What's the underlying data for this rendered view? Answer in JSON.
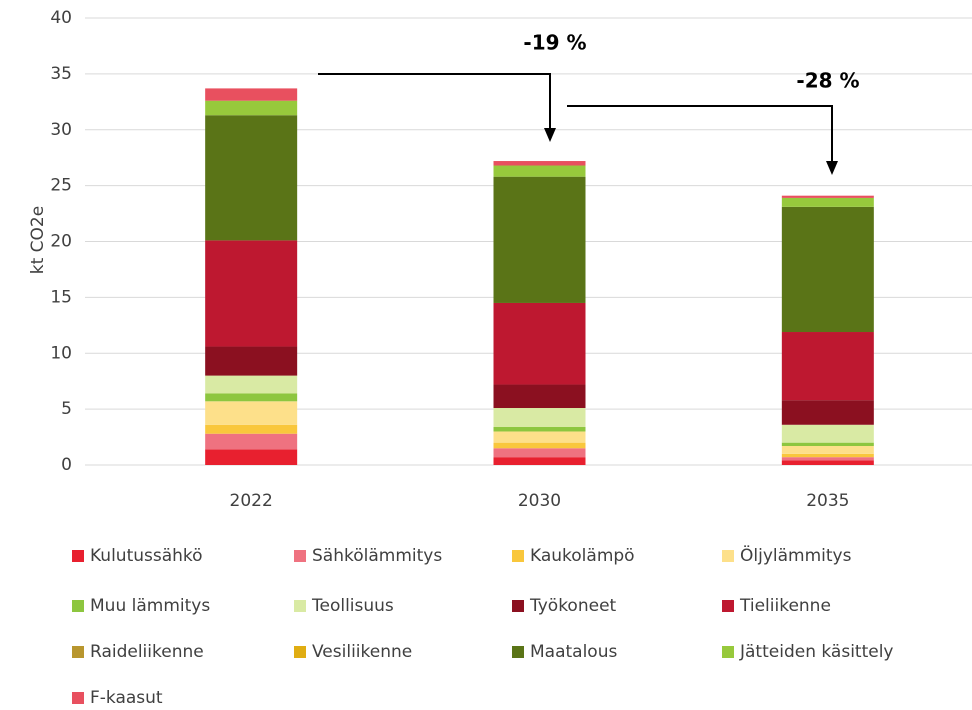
{
  "chart_data": {
    "type": "stacked_bar",
    "y_label": "kt CO2e",
    "categories": [
      "2022",
      "2030",
      "2035"
    ],
    "ylim": [
      0,
      40
    ],
    "yticks": [
      0,
      5,
      10,
      15,
      20,
      25,
      30,
      35,
      40
    ],
    "grid": true,
    "annotations": [
      "-19 %",
      "-28 %"
    ],
    "series": [
      {
        "name": "Kulutussähkö",
        "color": "#e8202f",
        "values": [
          1.4,
          0.7,
          0.4
        ]
      },
      {
        "name": "Sähkölämmitys",
        "color": "#ef7280",
        "values": [
          1.4,
          0.8,
          0.3
        ]
      },
      {
        "name": "Kaukolämpö",
        "color": "#f9c73c",
        "values": [
          0.8,
          0.5,
          0.3
        ]
      },
      {
        "name": "Öljylämmitys",
        "color": "#fde08a",
        "values": [
          2.1,
          1.0,
          0.7
        ]
      },
      {
        "name": "Muu lämmitys",
        "color": "#8dc63f",
        "values": [
          0.7,
          0.4,
          0.3
        ]
      },
      {
        "name": "Teollisuus",
        "color": "#d9eaa4",
        "values": [
          1.6,
          1.7,
          1.6
        ]
      },
      {
        "name": "Työkoneet",
        "color": "#8b1020",
        "values": [
          2.6,
          2.1,
          2.2
        ]
      },
      {
        "name": "Tieliikenne",
        "color": "#be1830",
        "values": [
          9.5,
          7.3,
          6.1
        ]
      },
      {
        "name": "Raideliikenne",
        "color": "#b8962e",
        "values": [
          0,
          0,
          0
        ]
      },
      {
        "name": "Vesiliikenne",
        "color": "#e0ad12",
        "values": [
          0,
          0,
          0
        ]
      },
      {
        "name": "Maatalous",
        "color": "#5a7417",
        "values": [
          11.2,
          11.3,
          11.2
        ]
      },
      {
        "name": "Jätteiden käsittely",
        "color": "#97c93c",
        "values": [
          1.3,
          1.0,
          0.8
        ]
      },
      {
        "name": "F-kaasut",
        "color": "#e8505f",
        "values": [
          1.1,
          0.4,
          0.2
        ]
      }
    ]
  }
}
